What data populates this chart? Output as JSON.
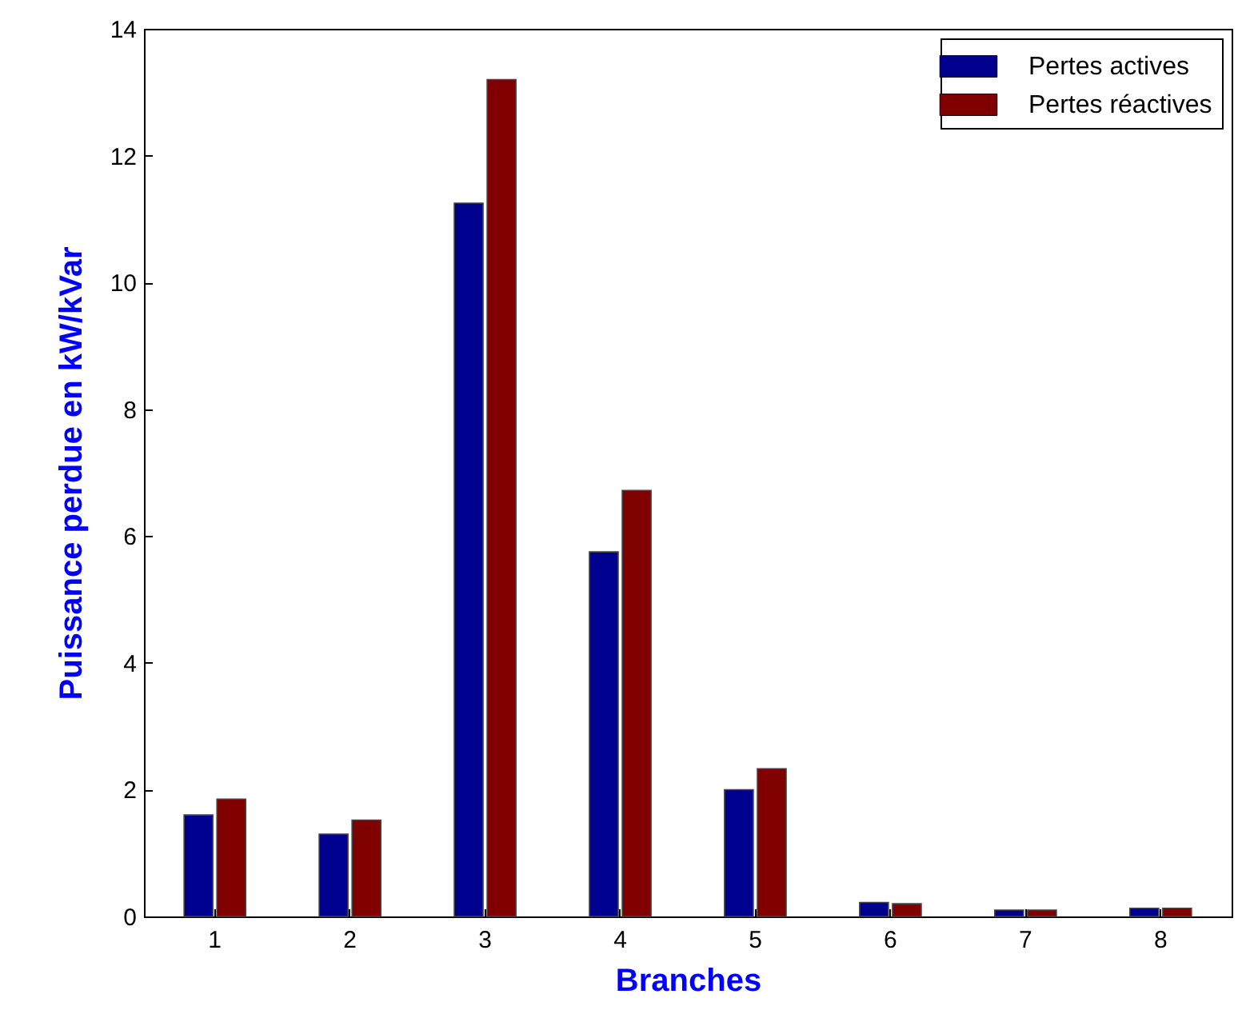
{
  "chart_data": {
    "type": "bar",
    "xlabel": "Branches",
    "ylabel": "Puissance perdue en kW/kVar",
    "categories": [
      "1",
      "2",
      "3",
      "4",
      "5",
      "6",
      "7",
      "8"
    ],
    "series": [
      {
        "name": "Pertes actives",
        "color": "#00008f",
        "values": [
          1.6,
          1.3,
          11.25,
          5.75,
          2.0,
          0.22,
          0.1,
          0.13
        ]
      },
      {
        "name": "Pertes réactives",
        "color": "#800000",
        "values": [
          1.85,
          1.52,
          13.2,
          6.72,
          2.33,
          0.2,
          0.1,
          0.13
        ]
      }
    ],
    "ylim": [
      0,
      14
    ],
    "yticks": [
      0,
      2,
      4,
      6,
      8,
      10,
      12,
      14
    ],
    "grid": false,
    "legend": "top right"
  }
}
